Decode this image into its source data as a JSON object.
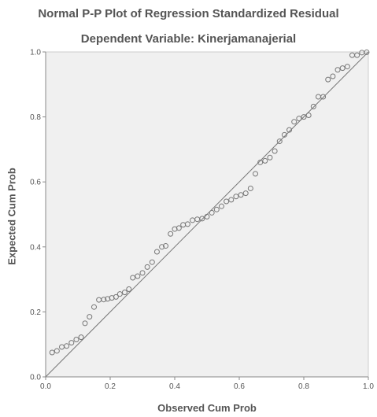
{
  "chart_data": {
    "type": "scatter",
    "title": "Normal P-P Plot of Regression Standardized Residual",
    "subtitle": "Dependent Variable: Kinerjamanajerial",
    "xlabel": "Observed Cum Prob",
    "ylabel": "Expected Cum Prob",
    "xlim": [
      0.0,
      1.0
    ],
    "ylim": [
      0.0,
      1.0
    ],
    "xticks": [
      "0.0",
      "0.2",
      "0.4",
      "0.6",
      "0.8",
      "1.0"
    ],
    "yticks": [
      "0.0",
      "0.2",
      "0.4",
      "0.6",
      "0.8",
      "1.0"
    ],
    "grid": false,
    "reference_line": {
      "from": [
        0.0,
        0.0
      ],
      "to": [
        1.0,
        1.0
      ]
    },
    "colors": {
      "plot_background": "#f0f0f0",
      "marker_stroke": "#777777",
      "line": "#777777",
      "text": "#555555"
    },
    "points": {
      "x": [
        0.02,
        0.035,
        0.05,
        0.065,
        0.08,
        0.095,
        0.11,
        0.122,
        0.136,
        0.15,
        0.165,
        0.18,
        0.192,
        0.205,
        0.218,
        0.23,
        0.245,
        0.258,
        0.27,
        0.285,
        0.3,
        0.315,
        0.33,
        0.345,
        0.36,
        0.372,
        0.387,
        0.4,
        0.413,
        0.426,
        0.44,
        0.455,
        0.47,
        0.485,
        0.5,
        0.515,
        0.53,
        0.545,
        0.56,
        0.575,
        0.59,
        0.605,
        0.62,
        0.635,
        0.65,
        0.665,
        0.68,
        0.695,
        0.71,
        0.725,
        0.74,
        0.755,
        0.77,
        0.785,
        0.8,
        0.815,
        0.83,
        0.845,
        0.86,
        0.875,
        0.89,
        0.905,
        0.92,
        0.935,
        0.95,
        0.965,
        0.98,
        0.995
      ],
      "y": [
        0.075,
        0.08,
        0.092,
        0.095,
        0.105,
        0.115,
        0.122,
        0.165,
        0.185,
        0.215,
        0.237,
        0.238,
        0.24,
        0.243,
        0.246,
        0.255,
        0.26,
        0.27,
        0.305,
        0.31,
        0.32,
        0.338,
        0.353,
        0.385,
        0.4,
        0.403,
        0.44,
        0.455,
        0.458,
        0.468,
        0.47,
        0.482,
        0.485,
        0.487,
        0.493,
        0.505,
        0.515,
        0.525,
        0.54,
        0.545,
        0.555,
        0.56,
        0.565,
        0.58,
        0.625,
        0.66,
        0.665,
        0.675,
        0.695,
        0.725,
        0.745,
        0.76,
        0.785,
        0.795,
        0.8,
        0.805,
        0.832,
        0.862,
        0.862,
        0.915,
        0.925,
        0.945,
        0.95,
        0.955,
        0.99,
        0.99,
        0.998,
        0.999
      ]
    }
  }
}
